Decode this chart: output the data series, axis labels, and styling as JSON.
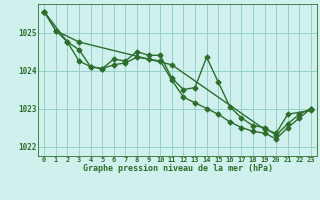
{
  "hours_sparse": [
    0,
    1,
    3,
    11,
    19,
    20,
    21,
    23
  ],
  "line_sparse": [
    1025.55,
    1025.05,
    1024.75,
    1024.15,
    1022.45,
    1022.35,
    1022.85,
    1022.95
  ],
  "hours_mid": [
    0,
    2,
    3,
    4,
    5,
    6,
    7,
    8,
    9,
    10,
    11,
    12,
    13,
    14,
    15,
    16,
    17,
    18,
    19,
    20,
    21,
    22,
    23
  ],
  "line_mid": [
    1025.55,
    1024.75,
    1024.55,
    1024.1,
    1024.05,
    1024.3,
    1024.25,
    1024.5,
    1024.4,
    1024.4,
    1023.8,
    1023.5,
    1023.55,
    1024.35,
    1023.7,
    1023.05,
    1022.75,
    1022.55,
    1022.5,
    1022.3,
    1022.6,
    1022.85,
    1023.0
  ],
  "hours_dense": [
    0,
    1,
    2,
    3,
    4,
    5,
    6,
    7,
    8,
    9,
    10,
    11,
    12,
    13,
    14,
    15,
    16,
    17,
    18,
    19,
    20,
    21,
    22,
    23
  ],
  "line_dense": [
    1025.55,
    1025.05,
    1024.75,
    1024.25,
    1024.1,
    1024.05,
    1024.15,
    1024.2,
    1024.35,
    1024.3,
    1024.25,
    1023.75,
    1023.3,
    1023.15,
    1023.0,
    1022.85,
    1022.65,
    1022.5,
    1022.4,
    1022.35,
    1022.2,
    1022.5,
    1022.75,
    1023.0
  ],
  "ylim_min": 1021.75,
  "ylim_max": 1025.75,
  "yticks": [
    1022,
    1023,
    1024,
    1025
  ],
  "xticks": [
    0,
    1,
    2,
    3,
    4,
    5,
    6,
    7,
    8,
    9,
    10,
    11,
    12,
    13,
    14,
    15,
    16,
    17,
    18,
    19,
    20,
    21,
    22,
    23
  ],
  "xlabel": "Graphe pression niveau de la mer (hPa)",
  "line_color": "#2d6e2d",
  "bg_color": "#cff0ec",
  "plot_bg_color": "#cff0ec",
  "grid_color": "#8cccc4",
  "marker": "D",
  "marker_size": 2.5,
  "line_width": 1.0
}
